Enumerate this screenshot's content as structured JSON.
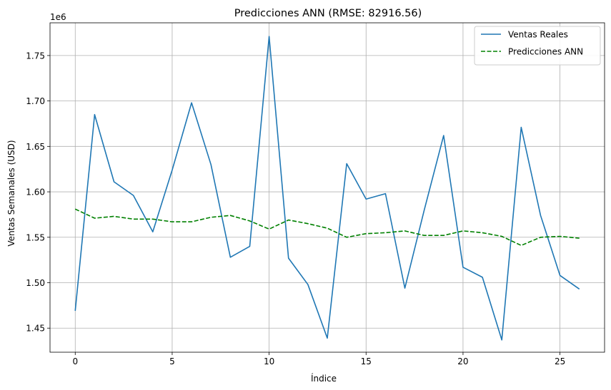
{
  "chart_data": {
    "type": "line",
    "title": "Predicciones ANN (RMSE: 82916.56)",
    "xlabel": "Índice",
    "ylabel": "Ventas Semanales (USD)",
    "y_offset_label": "1e6",
    "xlim": [
      -1.3,
      27.3
    ],
    "ylim": [
      1.4235,
      1.786
    ],
    "x_ticks": [
      0,
      5,
      10,
      15,
      20,
      25
    ],
    "x_tick_labels": [
      "0",
      "5",
      "10",
      "15",
      "20",
      "25"
    ],
    "y_ticks": [
      1.45,
      1.5,
      1.55,
      1.6,
      1.65,
      1.7,
      1.75
    ],
    "y_tick_labels": [
      "1.45",
      "1.50",
      "1.55",
      "1.60",
      "1.65",
      "1.70",
      "1.75"
    ],
    "grid": true,
    "legend_position": "top-right",
    "x": [
      0,
      1,
      2,
      3,
      4,
      5,
      6,
      7,
      8,
      9,
      10,
      11,
      12,
      13,
      14,
      15,
      16,
      17,
      18,
      19,
      20,
      21,
      22,
      23,
      24,
      25,
      26
    ],
    "series": [
      {
        "name": "Ventas Reales",
        "color": "#1f77b4",
        "style": "solid",
        "values": [
          1.469,
          1.685,
          1.611,
          1.596,
          1.556,
          1.624,
          1.698,
          1.63,
          1.528,
          1.54,
          1.771,
          1.527,
          1.498,
          1.439,
          1.631,
          1.592,
          1.598,
          1.494,
          1.58,
          1.662,
          1.517,
          1.506,
          1.437,
          1.671,
          1.574,
          1.508,
          1.493
        ]
      },
      {
        "name": "Predicciones ANN",
        "color": "#008000",
        "style": "dashed",
        "values": [
          1.581,
          1.571,
          1.573,
          1.57,
          1.57,
          1.567,
          1.567,
          1.572,
          1.574,
          1.568,
          1.559,
          1.569,
          1.565,
          1.56,
          1.55,
          1.554,
          1.555,
          1.557,
          1.552,
          1.552,
          1.557,
          1.555,
          1.551,
          1.541,
          1.55,
          1.551,
          1.549
        ]
      }
    ]
  }
}
